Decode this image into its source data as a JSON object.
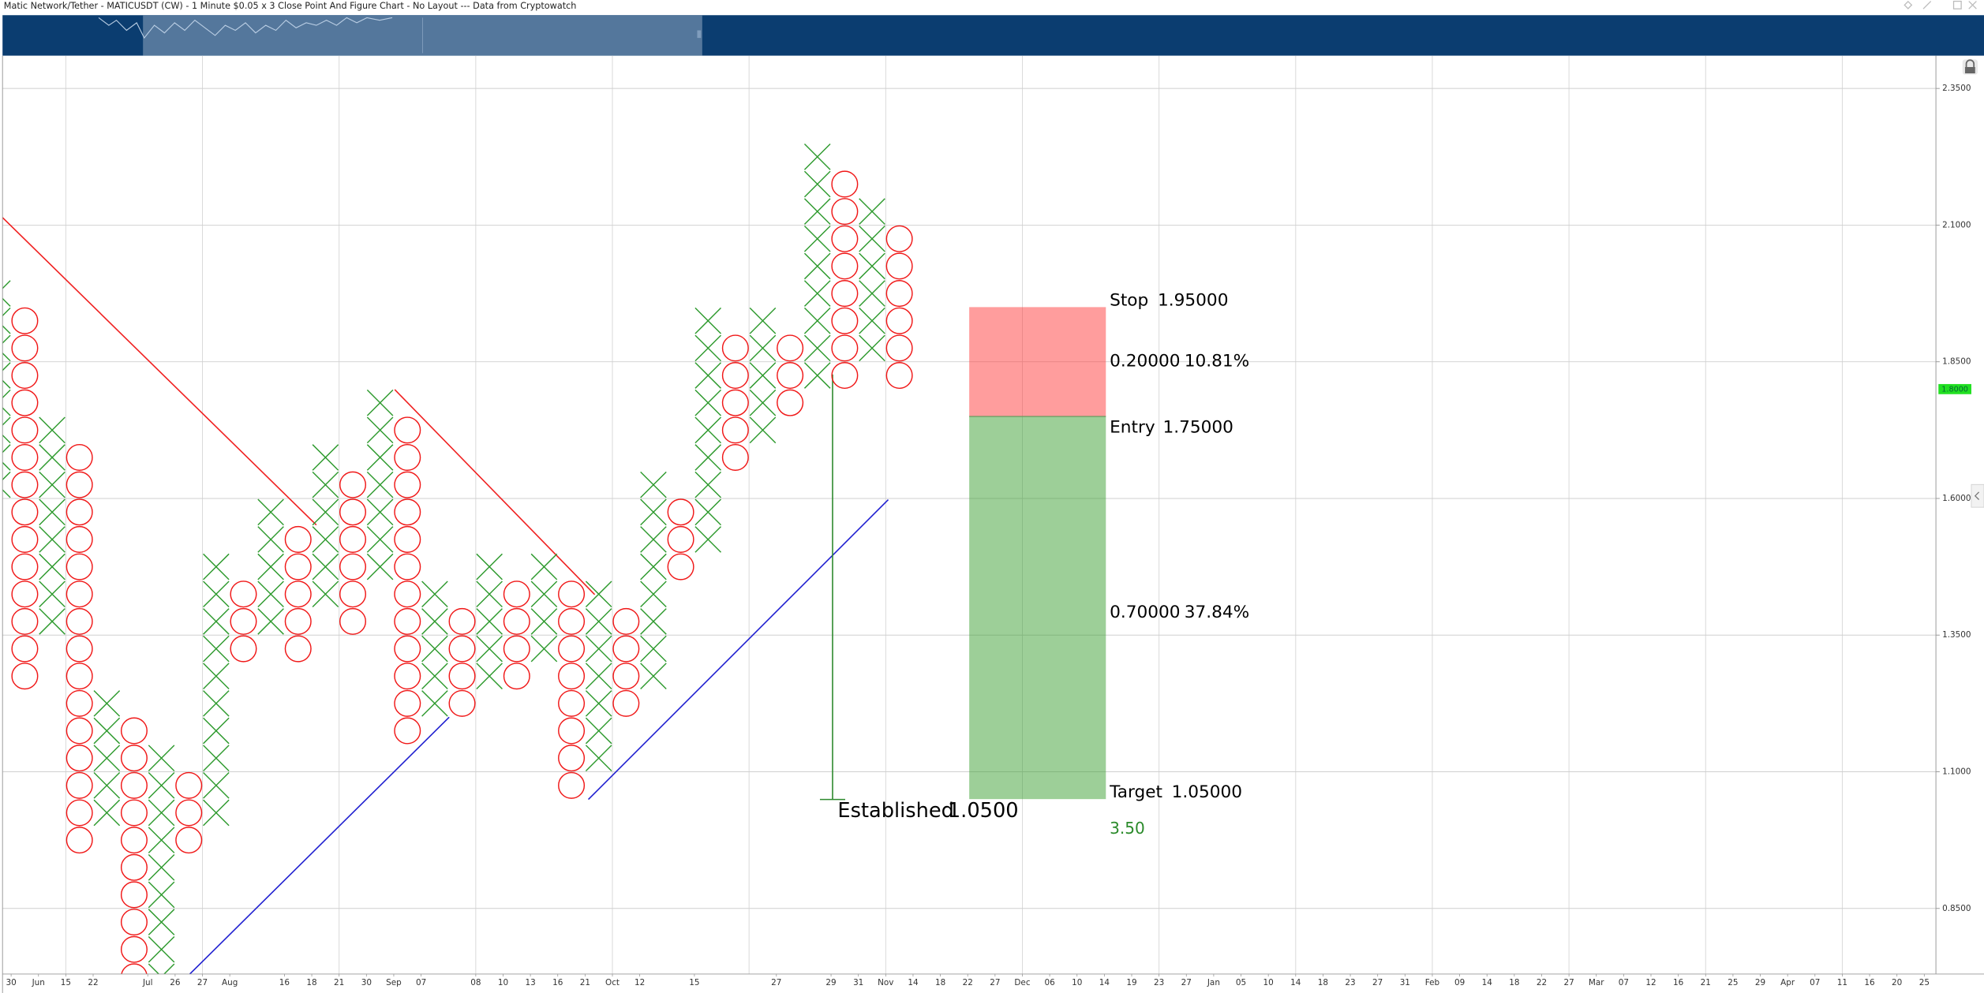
{
  "title": "Matic Network/Tether - MATICUSDT (CW) - 1 Minute $0.05 x 3 Close Point And Figure Chart - No Layout --- Data from Cryptowatch",
  "chart_data": {
    "type": "pnf",
    "box_size": 0.05,
    "ylim": [
      0.73,
      2.41
    ],
    "yticks": [
      {
        "value": 0.85,
        "label": "0.8500"
      },
      {
        "value": 1.1,
        "label": "1.1000"
      },
      {
        "value": 1.35,
        "label": "1.3500"
      },
      {
        "value": 1.6,
        "label": "1.6000"
      },
      {
        "value": 1.85,
        "label": "1.8500"
      },
      {
        "value": 2.1,
        "label": "2.1000"
      },
      {
        "value": 2.35,
        "label": "2.3500"
      }
    ],
    "grid": true,
    "colors": {
      "x": "#2e9a2e",
      "o": "#f01818"
    },
    "columns": [
      {
        "kind": "X",
        "high": 2.0,
        "low": 1.6
      },
      {
        "kind": "O",
        "high": 1.95,
        "low": 1.25
      },
      {
        "kind": "X",
        "high": 1.75,
        "low": 1.35
      },
      {
        "kind": "O",
        "high": 1.7,
        "low": 0.95
      },
      {
        "kind": "X",
        "high": 1.25,
        "low": 1.0
      },
      {
        "kind": "O",
        "high": 1.2,
        "low": 0.7
      },
      {
        "kind": "X",
        "high": 1.15,
        "low": 0.7
      },
      {
        "kind": "O",
        "high": 1.1,
        "low": 0.95
      },
      {
        "kind": "X",
        "high": 1.5,
        "low": 1.0
      },
      {
        "kind": "O",
        "high": 1.45,
        "low": 1.3
      },
      {
        "kind": "X",
        "high": 1.6,
        "low": 1.35
      },
      {
        "kind": "O",
        "high": 1.55,
        "low": 1.3
      },
      {
        "kind": "X",
        "high": 1.7,
        "low": 1.4
      },
      {
        "kind": "O",
        "high": 1.65,
        "low": 1.35
      },
      {
        "kind": "X",
        "high": 1.8,
        "low": 1.45
      },
      {
        "kind": "O",
        "high": 1.75,
        "low": 1.15
      },
      {
        "kind": "X",
        "high": 1.45,
        "low": 1.2
      },
      {
        "kind": "O",
        "high": 1.4,
        "low": 1.2
      },
      {
        "kind": "X",
        "high": 1.5,
        "low": 1.25
      },
      {
        "kind": "O",
        "high": 1.45,
        "low": 1.25
      },
      {
        "kind": "X",
        "high": 1.5,
        "low": 1.3
      },
      {
        "kind": "O",
        "high": 1.45,
        "low": 1.05
      },
      {
        "kind": "X",
        "high": 1.45,
        "low": 1.1
      },
      {
        "kind": "O",
        "high": 1.4,
        "low": 1.2
      },
      {
        "kind": "X",
        "high": 1.65,
        "low": 1.25
      },
      {
        "kind": "O",
        "high": 1.6,
        "low": 1.45
      },
      {
        "kind": "X",
        "high": 1.95,
        "low": 1.5
      },
      {
        "kind": "O",
        "high": 1.9,
        "low": 1.65
      },
      {
        "kind": "X",
        "high": 1.95,
        "low": 1.7
      },
      {
        "kind": "O",
        "high": 1.9,
        "low": 1.75
      },
      {
        "kind": "X",
        "high": 2.25,
        "low": 1.8
      },
      {
        "kind": "O",
        "high": 2.2,
        "low": 1.8
      },
      {
        "kind": "X",
        "high": 2.15,
        "low": 1.85
      },
      {
        "kind": "O",
        "high": 2.1,
        "low": 1.8
      }
    ],
    "categories": [
      "30",
      "Jun",
      "15",
      "22",
      null,
      "Jul",
      "26",
      "27",
      "Aug",
      null,
      "16",
      "18",
      "21",
      "30",
      "Sep",
      "07",
      null,
      "08",
      "10",
      "13",
      "16",
      "21",
      "Oct",
      "12",
      null,
      "15",
      null,
      null,
      "27",
      null,
      "29",
      "31",
      "Nov",
      "14",
      "18",
      "22",
      "27",
      "Dec",
      "06",
      "10",
      "14",
      "19",
      "23",
      "27",
      "Jan",
      "05",
      "10",
      "14",
      "18",
      "23",
      "27",
      "31",
      "Feb",
      "09",
      "14",
      "18",
      "22",
      "27",
      "Mar",
      "07",
      "12",
      "16",
      "21",
      "25",
      "29",
      "Apr",
      "07",
      "11",
      "16",
      "20",
      "25"
    ],
    "last_price": {
      "value": 1.8,
      "label": "1.8000"
    },
    "position": {
      "stop_label": "Stop",
      "stop": {
        "value": 1.95,
        "label": "1.95000"
      },
      "risk": {
        "value": 0.2,
        "label": "0.20000"
      },
      "risk_pct": {
        "value": 10.81,
        "label": "10.81%"
      },
      "entry_label": "Entry",
      "entry": {
        "value": 1.75,
        "label": "1.75000"
      },
      "reward": {
        "value": 0.7,
        "label": "0.70000"
      },
      "reward_pct": {
        "value": 37.84,
        "label": "37.84%"
      },
      "target_label": "Target",
      "target": {
        "value": 1.05,
        "label": "1.05000"
      },
      "ratio": {
        "value": 3.5,
        "label": "3.50"
      }
    },
    "established": {
      "label": "Established",
      "price": {
        "value": 1.05,
        "label": "1.0500"
      }
    }
  }
}
